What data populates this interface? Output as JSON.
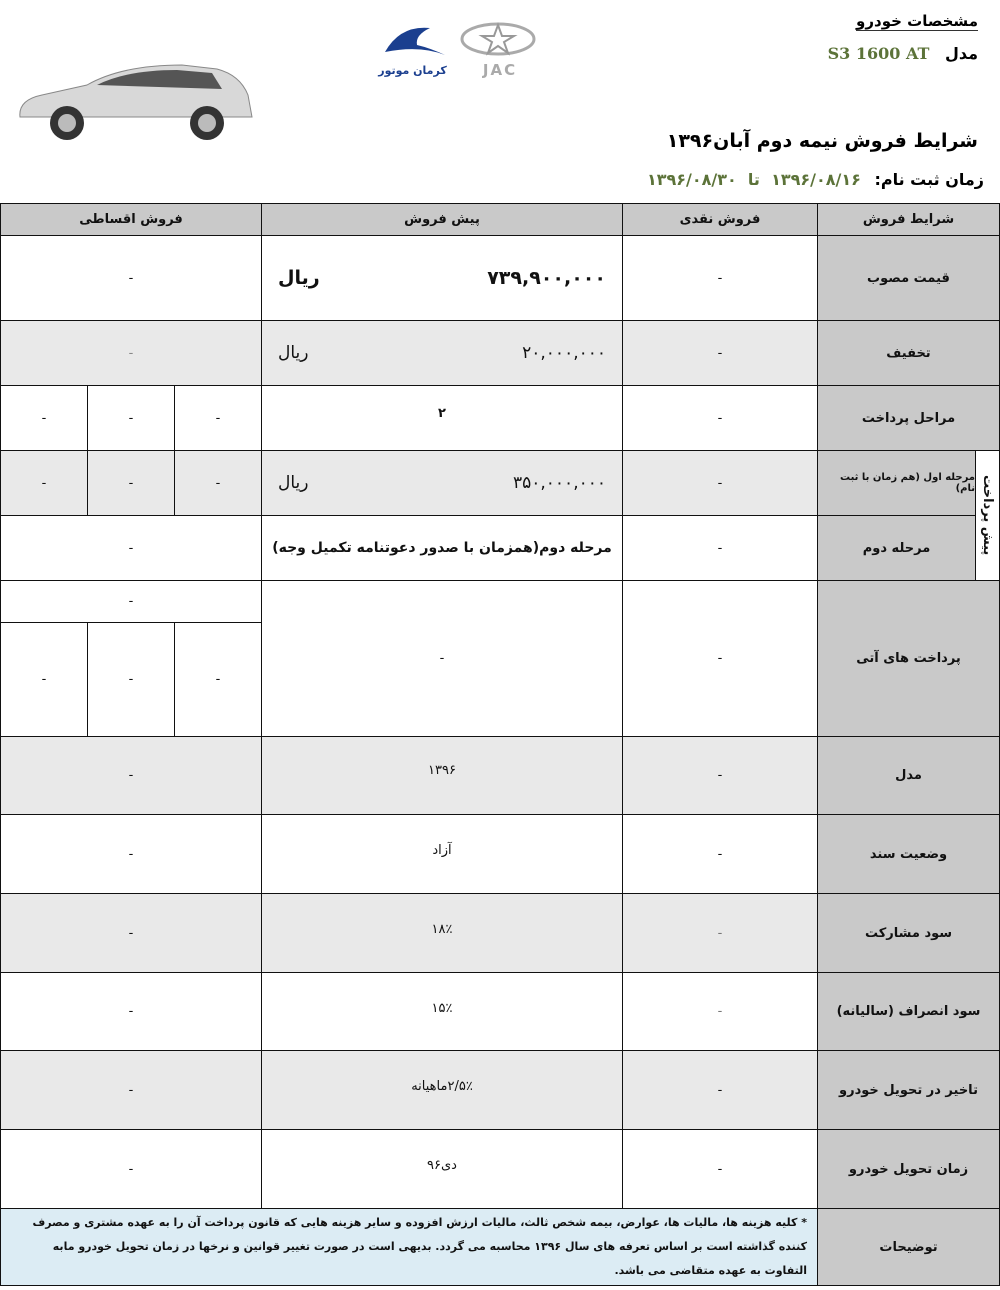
{
  "header": {
    "spec_title": "مشخصات خودرو",
    "model_label": "مدل",
    "model_value": "S3 1600 AT",
    "title": "شرایط فروش  نیمه دوم آبان۱۳۹۶",
    "reg_label": "زمان ثبت نام:",
    "reg_value": "۱۳۹۶/۰۸/۱۶  تا  ۱۳۹۶/۰۸/۳۰",
    "logo_jac": "JAC",
    "logo_kerman": "کرمان موتور"
  },
  "columns": [
    "شرایط فروش",
    "فروش نقدی",
    "پیش فروش",
    "فروش اقساطی"
  ],
  "prepay_group": "پیش پرداخت",
  "rows": {
    "price": {
      "label": "قیمت مصوب",
      "cash": "-",
      "presale": "۷۳۹,۹۰۰,۰۰۰",
      "unit": "ریال",
      "inst": "-"
    },
    "discount": {
      "label": "تخفیف",
      "cash": "-",
      "presale": "۲۰,۰۰۰,۰۰۰",
      "unit": "ریال",
      "inst": "-"
    },
    "stages": {
      "label": "مراحل پرداخت",
      "cash": "-",
      "presale": "۲",
      "inst": [
        "-",
        "-",
        "-"
      ]
    },
    "stage1": {
      "label": "مرحله اول (هم زمان با ثبت نام)",
      "cash": "-",
      "presale": "۳۵۰,۰۰۰,۰۰۰",
      "unit": "ریال",
      "inst": [
        "-",
        "-",
        "-"
      ]
    },
    "stage2": {
      "label": "مرحله دوم",
      "cash": "-",
      "presale": "مرحله دوم(همزمان با صدور دعوتنامه تکمیل وجه)",
      "inst": "-"
    },
    "future": {
      "label": "پرداخت های آتی",
      "cash": "-",
      "presale": "-",
      "inst_top": "-",
      "inst": [
        "-",
        "-",
        "-"
      ]
    },
    "model": {
      "label": "مدل",
      "cash": "-",
      "presale": "۱۳۹۶",
      "inst": "-"
    },
    "doc": {
      "label": "وضعیت سند",
      "cash": "-",
      "presale": "آزاد",
      "inst": "-"
    },
    "profit": {
      "label": "سود مشارکت",
      "cash": "-",
      "presale": "۱۸٪",
      "inst": "-"
    },
    "cancel": {
      "label": "سود انصراف (سالیانه)",
      "cash": "-",
      "presale": "۱۵٪",
      "inst": "-"
    },
    "delay": {
      "label": "تاخیر در تحویل خودرو",
      "cash": "-",
      "presale": "۲/۵٪ماهیانه",
      "inst": "-"
    },
    "delivery": {
      "label": "زمان تحویل خودرو",
      "cash": "-",
      "presale": "دی۹۶",
      "inst": "-"
    }
  },
  "notes": {
    "label": "توضیحات",
    "text": "* کلیه هزینه ها، مالیات ها، عوارض، بیمه شخص ثالث، مالیات ارزش افزوده و سایر هزینه هایی که قانون پرداخت آن را به عهده مشتری و مصرف کننده گذاشته است بر اساس تعرفه های سال ۱۳۹۶ محاسبه می گردد. بدیهی است در صورت تغییر قوانین و نرخها در زمان تحویل خودرو مابه التفاوت به عهده متقاضی می باشد."
  }
}
